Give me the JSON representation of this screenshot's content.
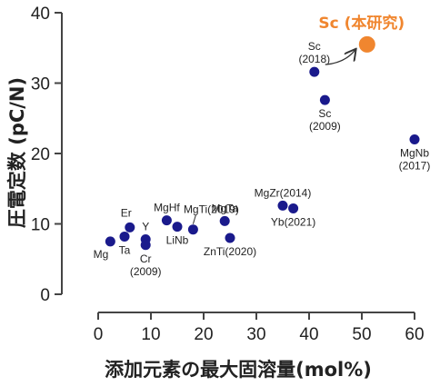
{
  "chart_data": {
    "type": "scatter",
    "xlabel": "添加元素の最大固溶量(mol%)",
    "ylabel": "圧電定数 (pC/N)",
    "xlim": [
      0,
      60
    ],
    "ylim": [
      0,
      40
    ],
    "x_ticks": [
      "0",
      "10",
      "20",
      "30",
      "40",
      "50",
      "60"
    ],
    "y_ticks": [
      "0",
      "10",
      "20",
      "30",
      "40"
    ],
    "grid": false,
    "colors": {
      "points": "#1a1a8c",
      "highlight": "#f0862f",
      "axis": "#444444"
    },
    "points": [
      {
        "x": 2.3,
        "y": 7.5
      },
      {
        "x": 5.0,
        "y": 8.2
      },
      {
        "x": 6.0,
        "y": 9.5
      },
      {
        "x": 9.0,
        "y": 7.8
      },
      {
        "x": 9.0,
        "y": 7.0
      },
      {
        "x": 13.0,
        "y": 10.5
      },
      {
        "x": 15.0,
        "y": 9.6
      },
      {
        "x": 18.0,
        "y": 9.2
      },
      {
        "x": 24.0,
        "y": 10.4
      },
      {
        "x": 25.0,
        "y": 8.0
      },
      {
        "x": 35.0,
        "y": 12.6
      },
      {
        "x": 37.0,
        "y": 12.2
      },
      {
        "x": 41.0,
        "y": 31.6
      },
      {
        "x": 43.0,
        "y": 27.6
      },
      {
        "x": 60.0,
        "y": 22.0
      }
    ],
    "point_labels": [
      {
        "text": "Mg",
        "x": 2.3,
        "y": 7.5,
        "pos": "below-left"
      },
      {
        "text": "Ta",
        "x": 5.0,
        "y": 8.2,
        "pos": "below"
      },
      {
        "text": "Er",
        "x": 6.0,
        "y": 9.5,
        "pos": "above-left"
      },
      {
        "text": "Y",
        "x": 9.0,
        "y": 7.8,
        "pos": "above"
      },
      {
        "text": "Cr",
        "x": 9.0,
        "y": 7.0,
        "pos": "below"
      },
      {
        "text": "(2009)",
        "x": 9.0,
        "y": 7.0,
        "pos": "below2"
      },
      {
        "text": "MgHf",
        "x": 13.0,
        "y": 10.5,
        "pos": "above"
      },
      {
        "text": "LiNb",
        "x": 15.0,
        "y": 9.6,
        "pos": "below"
      },
      {
        "text": "MgTi(2019)",
        "x": 18.0,
        "y": 9.2,
        "pos": "above-far"
      },
      {
        "text": "MgTa",
        "x": 24.0,
        "y": 10.4,
        "pos": "above"
      },
      {
        "text": "ZnTi(2020)",
        "x": 25.0,
        "y": 8.0,
        "pos": "below"
      },
      {
        "text": "MgZr(2014)",
        "x": 35.0,
        "y": 12.6,
        "pos": "above"
      },
      {
        "text": "Yb(2021)",
        "x": 37.0,
        "y": 12.2,
        "pos": "below"
      },
      {
        "text": "Sc",
        "x": 41.0,
        "y": 31.6,
        "pos": "above2"
      },
      {
        "text": "(2018)",
        "x": 41.0,
        "y": 31.6,
        "pos": "above"
      },
      {
        "text": "Sc",
        "x": 43.0,
        "y": 27.6,
        "pos": "below"
      },
      {
        "text": "(2009)",
        "x": 43.0,
        "y": 27.6,
        "pos": "below2"
      },
      {
        "text": "MgNb",
        "x": 60.0,
        "y": 22.0,
        "pos": "below"
      },
      {
        "text": "(2017)",
        "x": 60.0,
        "y": 22.0,
        "pos": "below2"
      }
    ],
    "highlight": {
      "x": 51.0,
      "y": 35.5,
      "label": "Sc (本研究)"
    }
  }
}
